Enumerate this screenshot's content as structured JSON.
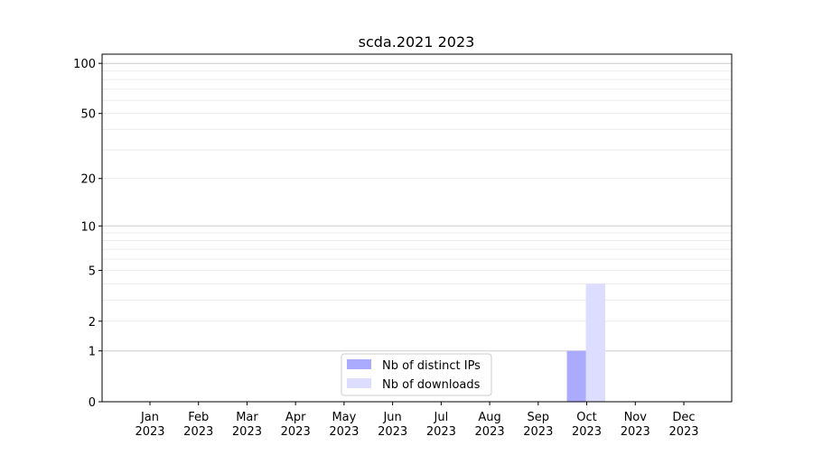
{
  "chart_data": {
    "type": "bar",
    "title": "scda.2021 2023",
    "xlabel": "",
    "ylabel": "",
    "yscale": "symlog",
    "ylim": [
      0,
      113
    ],
    "grid": true,
    "legend_position": "lower-center",
    "categories": [
      "Jan\n2023",
      "Feb\n2023",
      "Mar\n2023",
      "Apr\n2023",
      "May\n2023",
      "Jun\n2023",
      "Jul\n2023",
      "Aug\n2023",
      "Sep\n2023",
      "Oct\n2023",
      "Nov\n2023",
      "Dec\n2023"
    ],
    "y_ticks": [
      0,
      1,
      2,
      5,
      10,
      20,
      50,
      100
    ],
    "series": [
      {
        "name": "Nb of distinct IPs",
        "color": "#aaaaff",
        "values": [
          0,
          0,
          0,
          0,
          0,
          0,
          0,
          0,
          0,
          1,
          0,
          0
        ]
      },
      {
        "name": "Nb of downloads",
        "color": "#ddddff",
        "values": [
          0,
          0,
          0,
          0,
          0,
          0,
          0,
          0,
          0,
          4,
          0,
          0
        ]
      }
    ]
  }
}
